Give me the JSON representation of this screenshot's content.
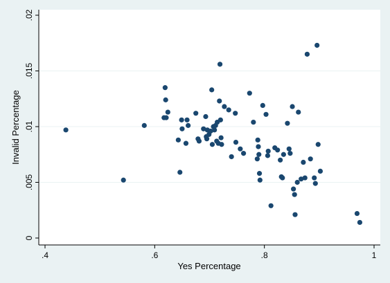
{
  "chart_data": {
    "type": "scatter",
    "xlabel": "Yes Percentage",
    "ylabel": "Invalid Percentage",
    "xlim": [
      0.4,
      1.0
    ],
    "ylim": [
      0,
      0.02
    ],
    "x_ticks": [
      ".4",
      ".6",
      ".8",
      "1"
    ],
    "x_tick_values": [
      0.4,
      0.6,
      0.8,
      1.0
    ],
    "y_ticks": [
      "0",
      ".005",
      ".01",
      ".015",
      ".02"
    ],
    "y_tick_values": [
      0,
      0.005,
      0.01,
      0.015,
      0.02
    ],
    "grid": "horizontal",
    "marker_color": "#1a476f",
    "plot_background": "#ffffff",
    "outer_background": "#eaf2f3",
    "points": [
      [
        0.438,
        0.0097
      ],
      [
        0.543,
        0.0052
      ],
      [
        0.581,
        0.0101
      ],
      [
        0.617,
        0.0108
      ],
      [
        0.619,
        0.0135
      ],
      [
        0.62,
        0.0124
      ],
      [
        0.621,
        0.0108
      ],
      [
        0.624,
        0.0113
      ],
      [
        0.643,
        0.0088
      ],
      [
        0.646,
        0.0059
      ],
      [
        0.649,
        0.0106
      ],
      [
        0.65,
        0.0098
      ],
      [
        0.657,
        0.0085
      ],
      [
        0.659,
        0.0106
      ],
      [
        0.661,
        0.0101
      ],
      [
        0.675,
        0.0112
      ],
      [
        0.679,
        0.0089
      ],
      [
        0.681,
        0.0087
      ],
      [
        0.689,
        0.0098
      ],
      [
        0.693,
        0.0109
      ],
      [
        0.694,
        0.0091
      ],
      [
        0.695,
        0.0089
      ],
      [
        0.696,
        0.0097
      ],
      [
        0.699,
        0.0093
      ],
      [
        0.702,
        0.0096
      ],
      [
        0.704,
        0.0133
      ],
      [
        0.705,
        0.0084
      ],
      [
        0.707,
        0.01
      ],
      [
        0.709,
        0.0097
      ],
      [
        0.711,
        0.0101
      ],
      [
        0.713,
        0.0087
      ],
      [
        0.714,
        0.0104
      ],
      [
        0.716,
        0.0085
      ],
      [
        0.718,
        0.0123
      ],
      [
        0.719,
        0.0156
      ],
      [
        0.72,
        0.0106
      ],
      [
        0.721,
        0.009
      ],
      [
        0.722,
        0.0084
      ],
      [
        0.727,
        0.0118
      ],
      [
        0.735,
        0.0115
      ],
      [
        0.74,
        0.0073
      ],
      [
        0.747,
        0.0112
      ],
      [
        0.748,
        0.0086
      ],
      [
        0.756,
        0.008
      ],
      [
        0.762,
        0.0076
      ],
      [
        0.773,
        0.013
      ],
      [
        0.78,
        0.0104
      ],
      [
        0.787,
        0.0071
      ],
      [
        0.788,
        0.0088
      ],
      [
        0.789,
        0.0082
      ],
      [
        0.79,
        0.0075
      ],
      [
        0.791,
        0.0058
      ],
      [
        0.792,
        0.0052
      ],
      [
        0.797,
        0.0119
      ],
      [
        0.803,
        0.0111
      ],
      [
        0.806,
        0.0074
      ],
      [
        0.807,
        0.0078
      ],
      [
        0.812,
        0.0029
      ],
      [
        0.819,
        0.0081
      ],
      [
        0.824,
        0.0079
      ],
      [
        0.829,
        0.007
      ],
      [
        0.831,
        0.0055
      ],
      [
        0.833,
        0.0054
      ],
      [
        0.835,
        0.0075
      ],
      [
        0.842,
        0.0103
      ],
      [
        0.845,
        0.008
      ],
      [
        0.847,
        0.0076
      ],
      [
        0.851,
        0.0118
      ],
      [
        0.853,
        0.0044
      ],
      [
        0.855,
        0.0039
      ],
      [
        0.856,
        0.0021
      ],
      [
        0.86,
        0.005
      ],
      [
        0.862,
        0.0113
      ],
      [
        0.867,
        0.0053
      ],
      [
        0.871,
        0.0068
      ],
      [
        0.874,
        0.0054
      ],
      [
        0.878,
        0.0165
      ],
      [
        0.884,
        0.0071
      ],
      [
        0.891,
        0.0054
      ],
      [
        0.893,
        0.0049
      ],
      [
        0.896,
        0.0173
      ],
      [
        0.898,
        0.0084
      ],
      [
        0.902,
        0.006
      ],
      [
        0.969,
        0.0022
      ],
      [
        0.974,
        0.0014
      ]
    ]
  }
}
